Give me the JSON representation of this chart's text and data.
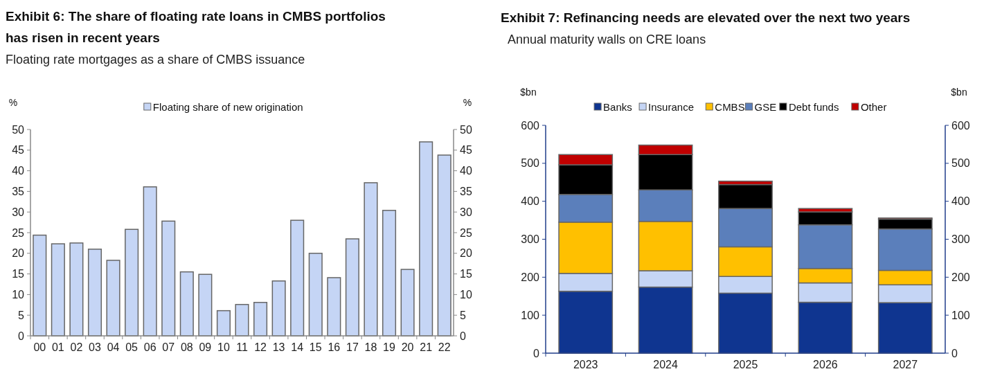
{
  "chart_data": [
    {
      "type": "bar",
      "title": "Exhibit 6: The share of floating rate loans in CMBS portfolios has risen in recent years",
      "subtitle": "Floating rate mortgages as a share of CMBS issuance",
      "ylabel": "%",
      "y2label": "%",
      "categories": [
        "00",
        "01",
        "02",
        "03",
        "04",
        "05",
        "06",
        "07",
        "08",
        "09",
        "10",
        "11",
        "12",
        "13",
        "14",
        "15",
        "16",
        "17",
        "18",
        "19",
        "20",
        "21",
        "22"
      ],
      "series": [
        {
          "name": "Floating share of new origination",
          "color": "#c5d5f5",
          "values": [
            24.4,
            22.3,
            22.5,
            21,
            18.3,
            25.8,
            36.1,
            27.8,
            15.5,
            14.9,
            6.1,
            7.6,
            8.1,
            13.3,
            28,
            20,
            14.1,
            23.5,
            37.1,
            30.4,
            16.1,
            47,
            43.8
          ]
        }
      ],
      "ylim": [
        0,
        50
      ],
      "yticks": [
        0,
        5,
        10,
        15,
        20,
        25,
        30,
        35,
        40,
        45,
        50
      ],
      "y2lim": [
        0,
        50
      ],
      "y2ticks": [
        0,
        5,
        10,
        15,
        20,
        25,
        30,
        35,
        40,
        45,
        50
      ],
      "legend": "top"
    },
    {
      "type": "bar",
      "title": "Exhibit 7: Refinancing needs are elevated over the next two years",
      "subtitle": "Annual maturity walls on CRE loans",
      "ylabel": "$bn",
      "y2label": "$bn",
      "categories": [
        "2023",
        "2024",
        "2025",
        "2026",
        "2027"
      ],
      "stacked": true,
      "series": [
        {
          "name": "Banks",
          "color": "#0f3590",
          "values": [
            163,
            174,
            158,
            134,
            133
          ]
        },
        {
          "name": "Insurance",
          "color": "#c5d5f5",
          "values": [
            47,
            43,
            44,
            51,
            47
          ]
        },
        {
          "name": "CMBS",
          "color": "#ffc000",
          "values": [
            135,
            130,
            78,
            38,
            38
          ]
        },
        {
          "name": "GSE",
          "color": "#5b7fbb",
          "values": [
            73,
            83,
            101,
            115,
            109
          ]
        },
        {
          "name": "Debt funds",
          "color": "#000000",
          "values": [
            78,
            93,
            63,
            34,
            26
          ]
        },
        {
          "name": "Other",
          "color": "#c00000",
          "values": [
            27,
            25,
            9,
            9,
            3
          ]
        }
      ],
      "ylim": [
        0,
        600
      ],
      "yticks": [
        0,
        100,
        200,
        300,
        400,
        500,
        600
      ],
      "y2lim": [
        0,
        600
      ],
      "y2ticks": [
        0,
        100,
        200,
        300,
        400,
        500,
        600
      ],
      "legend": "top"
    }
  ]
}
